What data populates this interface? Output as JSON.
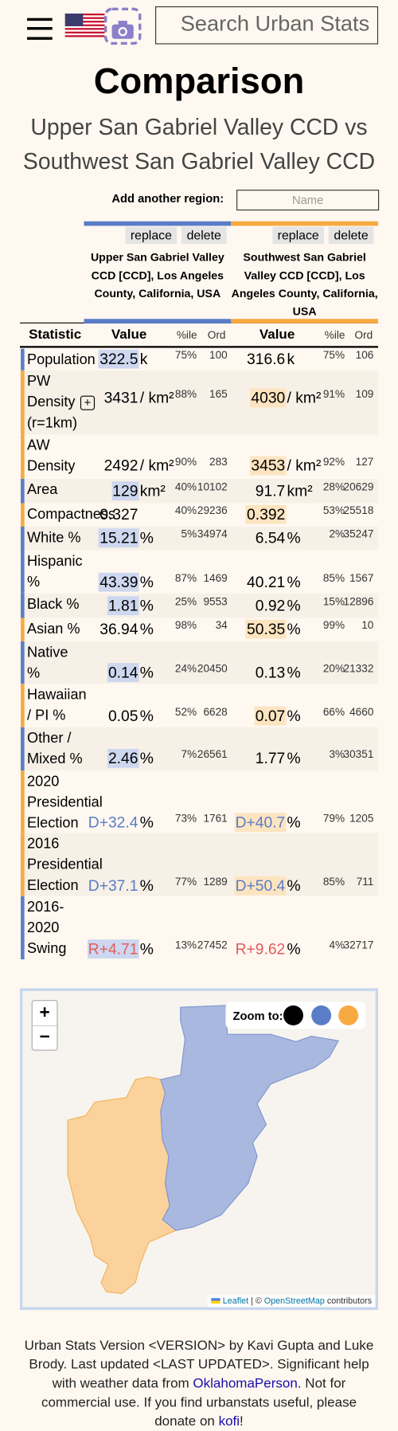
{
  "header": {
    "search_placeholder": "Search Urban Stats"
  },
  "title": "Comparison",
  "subtitle": "Upper San Gabriel Valley CCD vs Southwest San Gabriel Valley CCD",
  "add_region": {
    "label": "Add another region:",
    "placeholder": "Name"
  },
  "regions": [
    {
      "name": "Upper San Gabriel Valley CCD [CCD], Los Angeles County, California, USA",
      "color": "#5a7dc8",
      "highlight_color": "#cdd7ef",
      "replace": "replace",
      "delete": "delete"
    },
    {
      "name": "Southwest San Gabriel Valley CCD [CCD], Los Angeles County, California, USA",
      "color": "#f7aa41",
      "highlight_color": "#fde4c0",
      "replace": "replace",
      "delete": "delete"
    }
  ],
  "table": {
    "headers": {
      "statistic": "Statistic",
      "value": "Value",
      "percentile": "%ile",
      "ordinal": "Ord"
    },
    "rows": [
      {
        "statistic": "Population",
        "highlight": 0,
        "cells": [
          {
            "value": "322.5",
            "unit": "k",
            "percentile": "75%",
            "ordinal": "100"
          },
          {
            "value": "316.6",
            "unit": "k",
            "percentile": "75%",
            "ordinal": "106"
          }
        ]
      },
      {
        "statistic": "PW Density (r=1km)",
        "highlight": 1,
        "cells": [
          {
            "value": "3431",
            "unit": "/ km²",
            "percentile": "88%",
            "ordinal": "165"
          },
          {
            "value": "4030",
            "unit": "/ km²",
            "percentile": "91%",
            "ordinal": "109"
          }
        ]
      },
      {
        "statistic": "AW Density",
        "highlight": 1,
        "cells": [
          {
            "value": "2492",
            "unit": "/ km²",
            "percentile": "90%",
            "ordinal": "283"
          },
          {
            "value": "3453",
            "unit": "/ km²",
            "percentile": "92%",
            "ordinal": "127"
          }
        ]
      },
      {
        "statistic": "Area",
        "highlight": 0,
        "cells": [
          {
            "value": "129",
            "unit": "km²",
            "percentile": "40%",
            "ordinal": "10102"
          },
          {
            "value": "91.7",
            "unit": "km²",
            "percentile": "28%",
            "ordinal": "20629"
          }
        ]
      },
      {
        "statistic": "Compactness",
        "highlight": 1,
        "cells": [
          {
            "value": "0.327",
            "percentile": "40%",
            "ordinal": "29236"
          },
          {
            "value": "0.392",
            "percentile": "53%",
            "ordinal": "25518"
          }
        ]
      },
      {
        "statistic": "White %",
        "highlight": 0,
        "cells": [
          {
            "value": "15.21",
            "unit": "%",
            "percentile": "5%",
            "ordinal": "34974"
          },
          {
            "value": "6.54",
            "unit": "%",
            "percentile": "2%",
            "ordinal": "35247"
          }
        ]
      },
      {
        "statistic": "Hispanic %",
        "highlight": 0,
        "cells": [
          {
            "value": "43.39",
            "unit": "%",
            "percentile": "87%",
            "ordinal": "1469"
          },
          {
            "value": "40.21",
            "unit": "%",
            "percentile": "85%",
            "ordinal": "1567"
          }
        ]
      },
      {
        "statistic": "Black %",
        "highlight": 0,
        "cells": [
          {
            "value": "1.81",
            "unit": "%",
            "percentile": "25%",
            "ordinal": "9553"
          },
          {
            "value": "0.92",
            "unit": "%",
            "percentile": "15%",
            "ordinal": "12896"
          }
        ]
      },
      {
        "statistic": "Asian %",
        "highlight": 1,
        "cells": [
          {
            "value": "36.94",
            "unit": "%",
            "percentile": "98%",
            "ordinal": "34"
          },
          {
            "value": "50.35",
            "unit": "%",
            "percentile": "99%",
            "ordinal": "10"
          }
        ]
      },
      {
        "statistic": "Native %",
        "highlight": 0,
        "cells": [
          {
            "value": "0.14",
            "unit": "%",
            "percentile": "24%",
            "ordinal": "20450"
          },
          {
            "value": "0.13",
            "unit": "%",
            "percentile": "20%",
            "ordinal": "21332"
          }
        ]
      },
      {
        "statistic": "Hawaiian / PI %",
        "highlight": 1,
        "cells": [
          {
            "value": "0.05",
            "unit": "%",
            "percentile": "52%",
            "ordinal": "6628"
          },
          {
            "value": "0.07",
            "unit": "%",
            "percentile": "66%",
            "ordinal": "4660"
          }
        ]
      },
      {
        "statistic": "Other / Mixed %",
        "highlight": 0,
        "cells": [
          {
            "value": "2.46",
            "unit": "%",
            "percentile": "7%",
            "ordinal": "26561"
          },
          {
            "value": "1.77",
            "unit": "%",
            "percentile": "3%",
            "ordinal": "30351"
          }
        ]
      },
      {
        "statistic": "2020 Presidential Election",
        "highlight": 1,
        "cells": [
          {
            "value": "D+32.4",
            "unit": "%",
            "percentile": "73%",
            "ordinal": "1761"
          },
          {
            "value": "D+40.7",
            "unit": "%",
            "percentile": "79%",
            "ordinal": "1205"
          }
        ]
      },
      {
        "statistic": "2016 Presidential Election",
        "highlight": 1,
        "cells": [
          {
            "value": "D+37.1",
            "unit": "%",
            "percentile": "77%",
            "ordinal": "1289"
          },
          {
            "value": "D+50.4",
            "unit": "%",
            "percentile": "85%",
            "ordinal": "711"
          }
        ]
      },
      {
        "statistic": "2016-2020 Swing",
        "highlight": 0,
        "cells": [
          {
            "value": "R+4.71",
            "unit": "%",
            "percentile": "13%",
            "ordinal": "27452"
          },
          {
            "value": "R+9.62",
            "unit": "%",
            "percentile": "4%",
            "ordinal": "32717"
          }
        ]
      }
    ]
  },
  "map": {
    "zoom_in": "+",
    "zoom_out": "−",
    "zoom_to": "Zoom to:",
    "attribution": {
      "leaflet": "Leaflet",
      "separator": "| ©",
      "osm": "OpenStreetMap",
      "contributors": "contributors"
    }
  },
  "footer": {
    "text1": "Urban Stats Version <VERSION> by Kavi Gupta and Luke Brody. Last updated <LAST UPDATED>. Significant help with weather data from ",
    "link1": "OklahomaPerson",
    "text2": ". Not for commercial use. If you find urbanstats useful, please donate on ",
    "link2": "kofi",
    "text3": "!"
  }
}
